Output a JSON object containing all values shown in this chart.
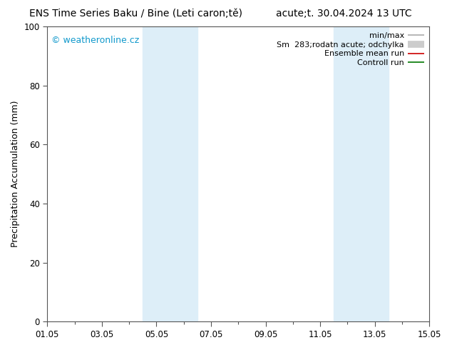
{
  "title_left": "ENS Time Series Baku / Bine (Leti caron;tě)",
  "title_right": "acute;t. 30.04.2024 13 UTC",
  "ylabel": "Precipitation Accumulation (mm)",
  "ylim": [
    0,
    100
  ],
  "yticks": [
    0,
    20,
    40,
    60,
    80,
    100
  ],
  "xlim": [
    0,
    14
  ],
  "xtick_labels": [
    "01.05",
    "03.05",
    "05.05",
    "07.05",
    "09.05",
    "11.05",
    "13.05",
    "15.05"
  ],
  "xtick_positions": [
    0,
    2,
    4,
    6,
    8,
    10,
    12,
    14
  ],
  "shaded_bands": [
    {
      "start": 3.5,
      "end": 4.5
    },
    {
      "start": 4.5,
      "end": 5.5
    },
    {
      "start": 10.5,
      "end": 11.5
    },
    {
      "start": 11.5,
      "end": 12.5
    }
  ],
  "shade_color": "#ddeef8",
  "watermark_text": "© weatheronline.cz",
  "watermark_color": "#1199cc",
  "legend_entries": [
    {
      "label": "min/max",
      "color": "#aaaaaa",
      "lw": 1.2,
      "type": "line"
    },
    {
      "label": "Sm  283;rodatn acute; odchylka",
      "color": "#cccccc",
      "lw": 7,
      "type": "line"
    },
    {
      "label": "Ensemble mean run",
      "color": "#cc0000",
      "lw": 1.2,
      "type": "line"
    },
    {
      "label": "Controll run",
      "color": "#007700",
      "lw": 1.2,
      "type": "line"
    }
  ],
  "bg_color": "#ffffff",
  "plot_bg_color": "#ffffff",
  "spine_color": "#555555",
  "title_fontsize": 10,
  "tick_fontsize": 8.5,
  "ylabel_fontsize": 9,
  "watermark_fontsize": 9,
  "legend_fontsize": 8
}
